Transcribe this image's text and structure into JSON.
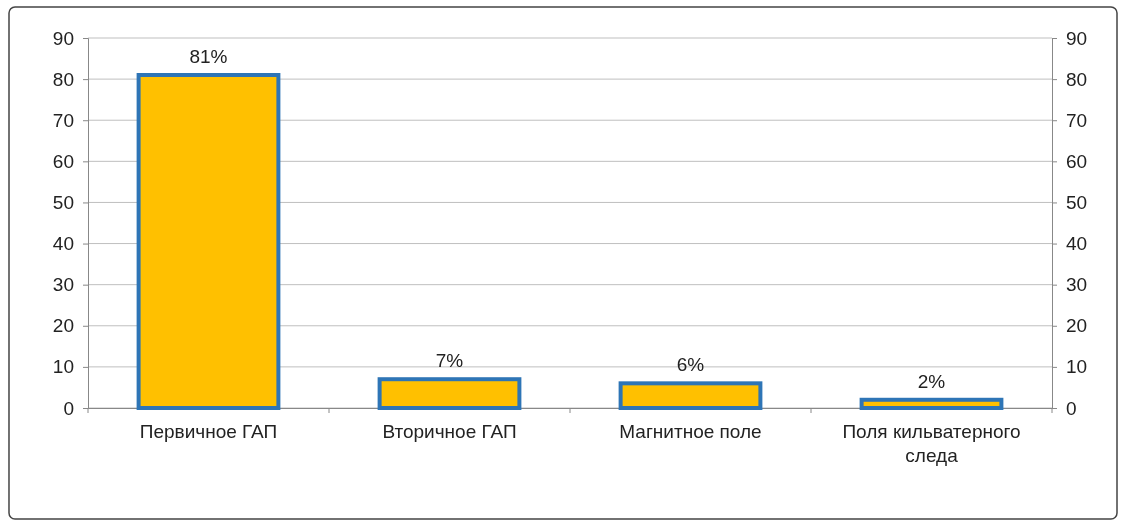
{
  "chart_data": {
    "type": "bar",
    "categories": [
      "Первичное ГАП",
      "Вторичное ГАП",
      "Магнитное поле",
      "Поля кильватерного следа"
    ],
    "values": [
      81,
      7,
      6,
      2
    ],
    "value_labels": [
      "81%",
      "7%",
      "6%",
      "2%"
    ],
    "color": "#ffc000",
    "ylim": [
      0,
      90
    ],
    "yticks": [
      0,
      10,
      20,
      30,
      40,
      50,
      60,
      70,
      80,
      90
    ],
    "y2lim": [
      0,
      90
    ],
    "y2ticks": [
      0,
      10,
      20,
      30,
      40,
      50,
      60,
      70,
      80,
      90
    ],
    "grid": "y"
  }
}
